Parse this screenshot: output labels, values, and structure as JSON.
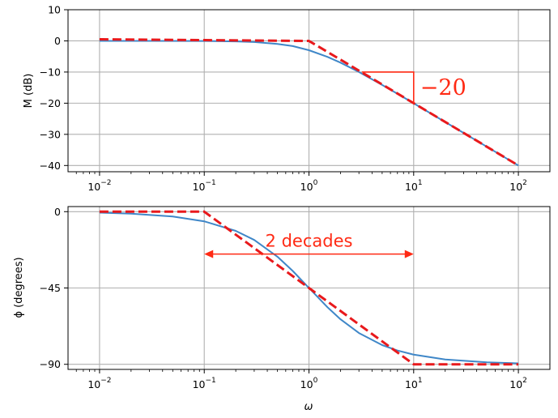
{
  "chart_data": [
    {
      "type": "line",
      "ylabel": "M (dB)",
      "xlabel": "",
      "xscale": "log",
      "xlim": [
        0.005,
        200
      ],
      "ylim": [
        -42,
        10
      ],
      "grid": true,
      "xticks": [
        0.01,
        0.1,
        1,
        10,
        100
      ],
      "xtick_labels": [
        {
          "base": "10",
          "exp": "−2"
        },
        {
          "base": "10",
          "exp": "−1"
        },
        {
          "base": "10",
          "exp": "0"
        },
        {
          "base": "10",
          "exp": "1"
        },
        {
          "base": "10",
          "exp": "2"
        }
      ],
      "yticks": [
        10,
        0,
        -10,
        -20,
        -30,
        -40
      ],
      "ytick_labels": [
        "10",
        "0",
        "−10",
        "−20",
        "−30",
        "−40"
      ],
      "series": [
        {
          "kind": "exact",
          "color": "#3f87c8",
          "style": "solid",
          "x": [
            0.01,
            0.03,
            0.1,
            0.2,
            0.3,
            0.5,
            0.7,
            1,
            1.5,
            2,
            3,
            5,
            7,
            10,
            20,
            30,
            50,
            100
          ],
          "y": [
            0,
            0,
            -0.04,
            -0.17,
            -0.37,
            -0.97,
            -1.67,
            -3.01,
            -5.12,
            -6.99,
            -10.0,
            -14.15,
            -17.0,
            -20.04,
            -26.03,
            -29.55,
            -33.98,
            -40.0
          ]
        },
        {
          "kind": "asymptote",
          "color": "#e8191c",
          "style": "dashed",
          "x": [
            0.01,
            1,
            100
          ],
          "y": [
            0.5,
            0,
            -40
          ]
        }
      ],
      "annotations": [
        {
          "kind": "slope-triangle",
          "color": "#ff2a14",
          "x": [
            3.2,
            10
          ],
          "y": [
            -10,
            -20
          ],
          "label": "−20"
        }
      ]
    },
    {
      "type": "line",
      "ylabel": "ϕ (degrees)",
      "xlabel": "ω",
      "xscale": "log",
      "xlim": [
        0.005,
        200
      ],
      "ylim": [
        -93,
        3
      ],
      "grid": true,
      "xticks": [
        0.01,
        0.1,
        1,
        10,
        100
      ],
      "xtick_labels": [
        {
          "base": "10",
          "exp": "−2"
        },
        {
          "base": "10",
          "exp": "−1"
        },
        {
          "base": "10",
          "exp": "0"
        },
        {
          "base": "10",
          "exp": "1"
        },
        {
          "base": "10",
          "exp": "2"
        }
      ],
      "yticks": [
        0,
        -45,
        -90
      ],
      "ytick_labels": [
        "0",
        "−45",
        "−90"
      ],
      "series": [
        {
          "kind": "exact",
          "color": "#3f87c8",
          "style": "solid",
          "x": [
            0.01,
            0.02,
            0.05,
            0.1,
            0.2,
            0.3,
            0.5,
            0.7,
            1,
            1.5,
            2,
            3,
            5,
            7,
            10,
            20,
            50,
            100
          ],
          "y": [
            -0.57,
            -1.15,
            -2.86,
            -5.71,
            -11.31,
            -16.7,
            -26.57,
            -34.99,
            -45,
            -56.31,
            -63.43,
            -71.57,
            -78.69,
            -81.87,
            -84.29,
            -87.14,
            -88.85,
            -89.43
          ]
        },
        {
          "kind": "asymptote",
          "color": "#e8191c",
          "style": "dashed",
          "x": [
            0.01,
            0.1,
            10,
            100
          ],
          "y": [
            0,
            0,
            -90,
            -90
          ]
        }
      ],
      "annotations": [
        {
          "kind": "double-arrow",
          "color": "#ff2a14",
          "x": [
            0.1,
            10
          ],
          "y": -25,
          "label": "2 decades"
        }
      ]
    }
  ]
}
